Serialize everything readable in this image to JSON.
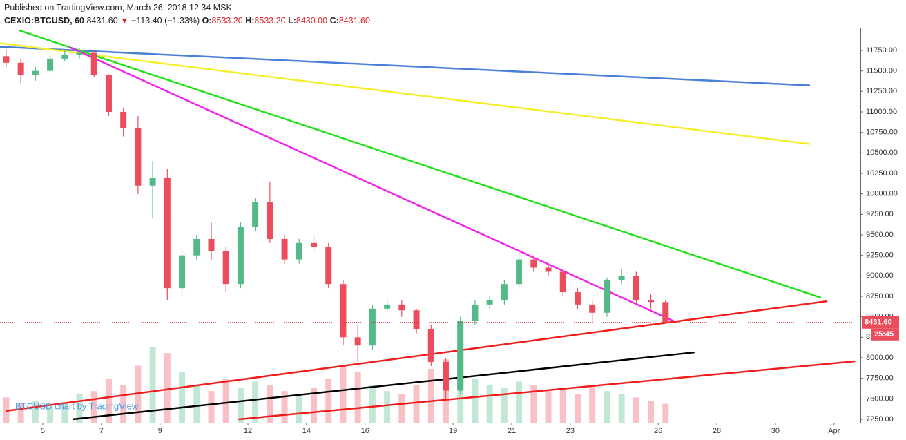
{
  "header": {
    "published": "Published on TradingView.com, March 26, 2018 12:34 MSK",
    "symbol": "CEXIO:BTCUSD, 60",
    "last": "8431.60",
    "change": "−113.40 (−1.33%)",
    "ohlc": [
      {
        "label": "O:",
        "value": "8533.20"
      },
      {
        "label": "H:",
        "value": "8533.20"
      },
      {
        "label": "L:",
        "value": "8430.00"
      },
      {
        "label": "C:",
        "value": "8431.60"
      }
    ]
  },
  "chart_data": {
    "type": "candlestick",
    "watermark": "BTCUSD chart by TradingView",
    "x": [
      3.75,
      4.25,
      4.75,
      5.25,
      5.75,
      6.25,
      6.75,
      7.25,
      7.75,
      8.25,
      8.75,
      9.25,
      9.75,
      10.25,
      10.75,
      11.25,
      11.75,
      12.25,
      12.75,
      13.25,
      13.75,
      14.25,
      14.75,
      15.25,
      15.75,
      16.25,
      16.75,
      17.25,
      17.75,
      18.25,
      18.75,
      19.25,
      19.75,
      20.25,
      20.75,
      21.25,
      21.75,
      22.25,
      22.75,
      23.25,
      23.75,
      24.25,
      24.75,
      25.25,
      25.75,
      26.25
    ],
    "open": [
      11680,
      11600,
      11450,
      11500,
      11650,
      11700,
      11720,
      11450,
      11000,
      10800,
      10100,
      10200,
      8850,
      9250,
      9450,
      9300,
      8900,
      9600,
      9900,
      9450,
      9200,
      9400,
      9350,
      8900,
      8250,
      8150,
      8600,
      8650,
      8580,
      8350,
      7950,
      7600,
      8450,
      8650,
      8700,
      8900,
      9200,
      9100,
      9050,
      8800,
      8650,
      8550,
      8950,
      9000,
      8700,
      8680
    ],
    "high": [
      11750,
      11650,
      11550,
      11700,
      11760,
      11780,
      11740,
      11460,
      11050,
      10950,
      10400,
      10300,
      9300,
      9500,
      9650,
      9350,
      9650,
      9950,
      10150,
      9500,
      9450,
      9500,
      9400,
      8950,
      8400,
      8650,
      8720,
      8700,
      8600,
      8400,
      8000,
      8500,
      8700,
      8750,
      8950,
      9300,
      9250,
      9150,
      9070,
      8850,
      8700,
      8980,
      9080,
      9050,
      8780,
      8700
    ],
    "low": [
      11550,
      11350,
      11380,
      11480,
      11620,
      11650,
      11430,
      10950,
      10700,
      10000,
      9700,
      8700,
      8750,
      9200,
      9200,
      8800,
      8850,
      9550,
      9400,
      9150,
      9150,
      9300,
      8850,
      8150,
      7950,
      8100,
      8550,
      8500,
      8300,
      7900,
      7500,
      7550,
      8400,
      8600,
      8650,
      8850,
      9050,
      9000,
      8750,
      8600,
      8450,
      8500,
      8900,
      8650,
      8600,
      8430
    ],
    "close": [
      11600,
      11450,
      11500,
      11650,
      11700,
      11720,
      11450,
      11000,
      10800,
      10100,
      10200,
      8850,
      9250,
      9450,
      9300,
      8900,
      9600,
      9900,
      9450,
      9200,
      9400,
      9350,
      8900,
      8250,
      8150,
      8600,
      8650,
      8580,
      8350,
      7950,
      7600,
      8450,
      8650,
      8700,
      8900,
      9200,
      9100,
      9050,
      8800,
      8650,
      8550,
      8950,
      9000,
      8700,
      8680,
      8431.6
    ],
    "volume": [
      40,
      30,
      35,
      25,
      30,
      45,
      50,
      70,
      60,
      90,
      120,
      110,
      80,
      60,
      50,
      70,
      55,
      65,
      60,
      50,
      45,
      55,
      70,
      90,
      80,
      60,
      50,
      45,
      60,
      85,
      100,
      110,
      70,
      60,
      55,
      65,
      60,
      50,
      55,
      45,
      60,
      50,
      45,
      40,
      35,
      30
    ],
    "up_color": "#53b987",
    "down_color": "#eb4d5c",
    "last_price": 8431.6,
    "last_price_label": "8431.60",
    "countdown": "25:45",
    "lines": [
      {
        "color": "#4a7fd8",
        "points": [
          [
            3.54,
            11795
          ],
          [
            31.18,
            11323
          ]
        ]
      },
      {
        "color": "#f5ee2a",
        "points": [
          [
            3.54,
            11838
          ],
          [
            31.18,
            10608
          ]
        ]
      },
      {
        "color": "#22e01a",
        "points": [
          [
            4.2,
            11994
          ],
          [
            31.56,
            8733
          ]
        ]
      },
      {
        "color": "#f025e8",
        "points": [
          [
            5.9,
            11792
          ],
          [
            26.54,
            8447
          ]
        ]
      },
      {
        "color": "#f21c1c",
        "points": [
          [
            3.73,
            7351
          ],
          [
            31.77,
            8691
          ]
        ]
      },
      {
        "color": "#000000",
        "points": [
          [
            6.02,
            7250
          ],
          [
            27.24,
            8067
          ]
        ]
      },
      {
        "color": "#f21c1c",
        "points": [
          [
            11.68,
            7250
          ],
          [
            32.72,
            7958
          ]
        ]
      }
    ],
    "xlim": [
      3.54,
      32.9
    ],
    "xticks": [
      5,
      7,
      9,
      12,
      14,
      16,
      19,
      21,
      23,
      26,
      28,
      30,
      {
        "value": 32,
        "label": "Apr"
      }
    ],
    "ylim": [
      7208,
      12028
    ],
    "yticks": [
      {
        "value": 7250,
        "label": "7250.00"
      },
      {
        "value": 7500,
        "label": "7500.00"
      },
      {
        "value": 7750,
        "label": "7750.00"
      },
      {
        "value": 8000,
        "label": "8000.00"
      },
      {
        "value": 8250,
        "label": "8250.00"
      },
      {
        "value": 8500,
        "label": "8500.00"
      },
      {
        "value": 8750,
        "label": "8750.00"
      },
      {
        "value": 9000,
        "label": "9000.00"
      },
      {
        "value": 9250,
        "label": "9250.00"
      },
      {
        "value": 9500,
        "label": "9500.00"
      },
      {
        "value": 9750,
        "label": "9750.00"
      },
      {
        "value": 10000,
        "label": "10000.00"
      },
      {
        "value": 10250,
        "label": "10250.00"
      },
      {
        "value": 10500,
        "label": "10500.00"
      },
      {
        "value": 10750,
        "label": "10750.00"
      },
      {
        "value": 11000,
        "label": "11000.00"
      },
      {
        "value": 11250,
        "label": "11250.00"
      },
      {
        "value": 11500,
        "label": "11500.00"
      },
      {
        "value": 11750,
        "label": "11750.00"
      }
    ],
    "grid": false
  }
}
